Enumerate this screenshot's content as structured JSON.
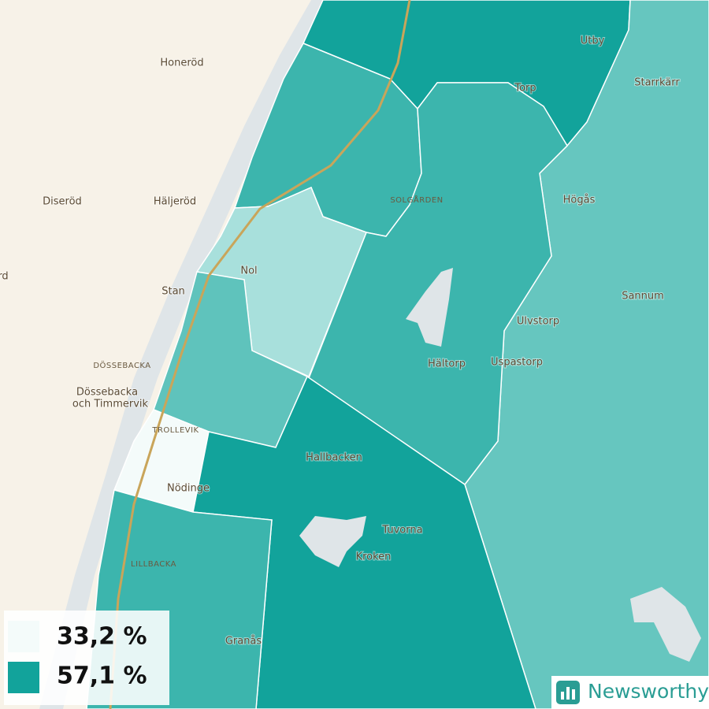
{
  "places": [
    "Honeröd",
    "Diseröd",
    "Häljeröd",
    "rd",
    "Stan",
    "DÖSSEBACKA",
    "Dössebacka",
    "och Timmervik",
    "Nol",
    "TROLLEVIK",
    "Nödinge",
    "LILLBACKA",
    "Granås",
    "Hallbacken",
    "Tuvorna",
    "Kroken",
    "Hältorp",
    "Uspastorp",
    "Ulvstorp",
    "Sannum",
    "Högås",
    "SOLGÅRDEN",
    "Torp",
    "Utby",
    "Starrkärr"
  ],
  "legend": [
    {
      "label": "33,2 %",
      "color": "#f4fbfa"
    },
    {
      "label": "57,1 %",
      "color": "#12a39b"
    }
  ],
  "brand": "Newsworthy"
}
